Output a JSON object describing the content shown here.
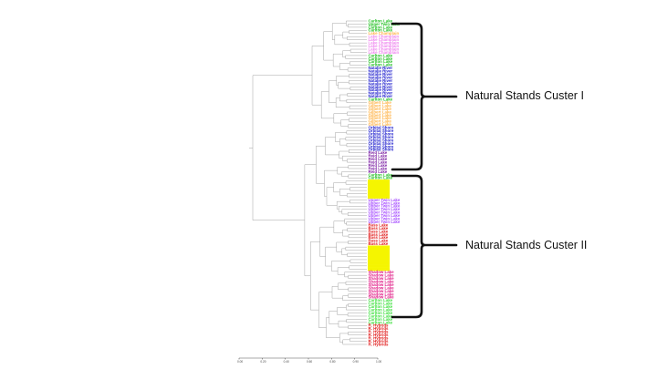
{
  "clusters": {
    "top_label": "Natural Stands Custer I",
    "bottom_label": "Natural Stands Custer II"
  },
  "dendrogram": {
    "x_ticks": [
      "0.00",
      "0.20",
      "0.40",
      "0.60",
      "0.80",
      "0.90",
      "1.00"
    ],
    "leaf_groups": [
      {
        "label": "Carlton Lake",
        "color": "#1fbf1f",
        "count": 1
      },
      {
        "label": "Upper Twin Lake",
        "color": "#1fbf1f",
        "count": 1
      },
      {
        "label": "Carlton Lake",
        "color": "#1fbf1f",
        "count": 2
      },
      {
        "label": "Lake Champlain",
        "color": "#ffb347",
        "count": 1
      },
      {
        "label": "Lake Champlain",
        "color": "#ee82ee",
        "count": 6
      },
      {
        "label": "Carlton Lake",
        "color": "#1fbf1f",
        "count": 4
      },
      {
        "label": "Natalie River",
        "color": "#1a1acc",
        "count": 10
      },
      {
        "label": "Carlton Lake",
        "color": "#1fbf1f",
        "count": 1
      },
      {
        "label": "Gilbert Lake",
        "color": "#ffb347",
        "count": 8
      },
      {
        "label": "Orbital Shore",
        "color": "#1a1acc",
        "count": 8
      },
      {
        "label": "Reid Lake",
        "color": "#7b1fa2",
        "count": 7
      },
      {
        "label": "Carlton Lake",
        "color": "#1fbf1f",
        "count": 2
      },
      {
        "label": "",
        "color": "#f5f500",
        "count": 6
      },
      {
        "label": "Upper Twin Lake",
        "color": "#a64dff",
        "count": 8
      },
      {
        "label": "Bass Lake",
        "color": "#e01b1b",
        "count": 7
      },
      {
        "label": "",
        "color": "#f5f500",
        "count": 8
      },
      {
        "label": "Shadow Lake",
        "color": "#e01b86",
        "count": 9
      },
      {
        "label": "Carlton Lake",
        "color": "#3fe03f",
        "count": 8
      },
      {
        "label": "R. Hybrids",
        "color": "#e01b1b",
        "count": 7
      }
    ]
  }
}
